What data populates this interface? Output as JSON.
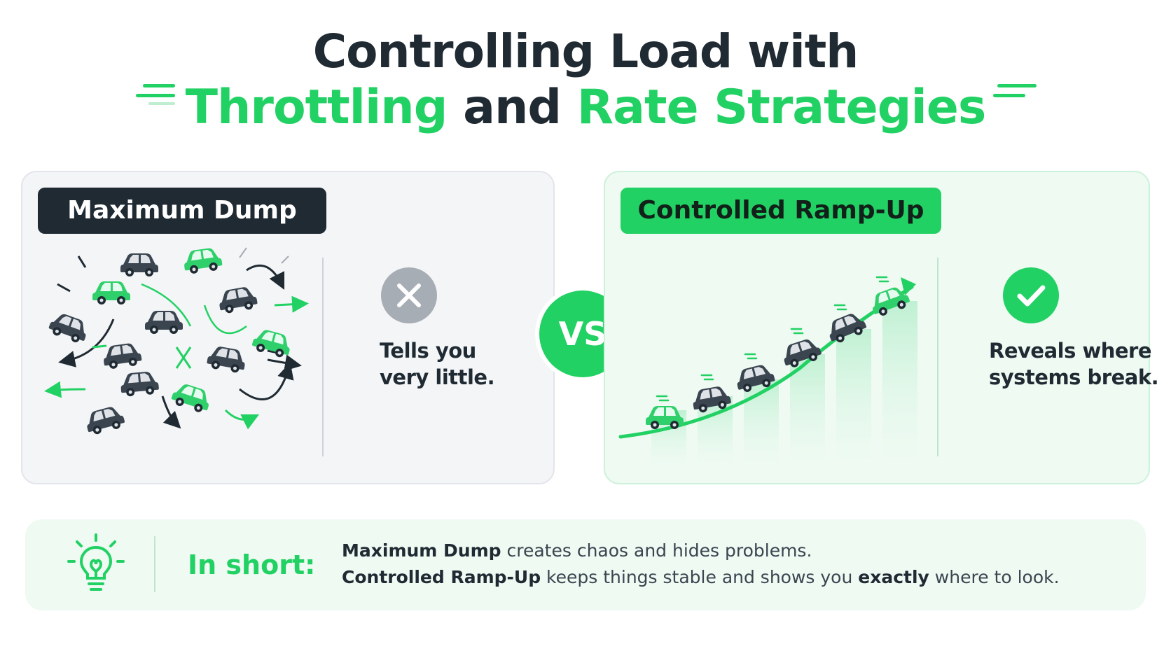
{
  "title": {
    "line1": "Controlling Load with",
    "line2_part1": "Throttling",
    "line2_part2": " and ",
    "line2_part3": "Rate Strategies"
  },
  "left_panel": {
    "label": "Maximum Dump",
    "caption_line1": "Tells you",
    "caption_line2": "very little.",
    "icon": "close-icon"
  },
  "vs_label": "VS",
  "right_panel": {
    "label": "Controlled Ramp-Up",
    "caption_line1": "Reveals where",
    "caption_line2": "systems break.",
    "icon": "check-icon"
  },
  "summary": {
    "heading": "In short:",
    "line1_bold": "Maximum Dump",
    "line1_rest": " creates chaos and hides problems.",
    "line2_bold1": "Controlled Ramp-Up",
    "line2_mid": " keeps things stable and shows you ",
    "line2_bold2": "exactly",
    "line2_end": " where to look.",
    "icon": "lightbulb-icon"
  },
  "colors": {
    "accent": "#22d163",
    "dark": "#1f2a33",
    "gray": "#a7adb4"
  }
}
